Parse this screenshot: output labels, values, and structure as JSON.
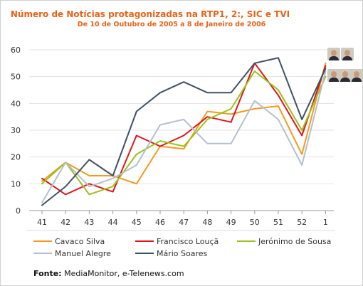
{
  "chart_data": {
    "type": "line",
    "title": "Número de Notícias protagonizadas na RTP1, 2:, SIC e TVI",
    "subtitle": "De 10 de Outubro de 2005 a 8 de Janeiro de 2006",
    "xlabel": "",
    "ylabel": "",
    "categories": [
      "41",
      "42",
      "43",
      "44",
      "45",
      "46",
      "47",
      "48",
      "49",
      "50",
      "51",
      "52",
      "1"
    ],
    "ylim": [
      0,
      60
    ],
    "yticks": [
      0,
      10,
      20,
      30,
      40,
      50,
      60
    ],
    "grid": "horizontal",
    "legend_position": "bottom",
    "series": [
      {
        "name": "Cavaco Silva",
        "color": "#f39a1e",
        "values": [
          11,
          18,
          13,
          13,
          10,
          24,
          23,
          37,
          36,
          38,
          39,
          21,
          55
        ]
      },
      {
        "name": "Francisco Louçã",
        "color": "#e0151b",
        "values": [
          12,
          6,
          10,
          7,
          28,
          24,
          28,
          35,
          33,
          55,
          43,
          28,
          54
        ]
      },
      {
        "name": "Jerónimo de Sousa",
        "color": "#9bc21a",
        "values": [
          10,
          18,
          6,
          9,
          21,
          26,
          24,
          34,
          38,
          52,
          45,
          30,
          50
        ]
      },
      {
        "name": "Manuel Alegre",
        "color": "#b3c0cc",
        "values": [
          3,
          18,
          9,
          12,
          17,
          32,
          34,
          25,
          25,
          41,
          34,
          17,
          52
        ]
      },
      {
        "name": "Mário Soares",
        "color": "#3d5166",
        "values": [
          2,
          9,
          19,
          13,
          37,
          44,
          48,
          44,
          44,
          55,
          57,
          34,
          53
        ]
      }
    ]
  },
  "source": {
    "label": "Fonte:",
    "text": "MediaMonitor, e-Telenews.com"
  },
  "photos": [
    {
      "name": "candidate-photo-1"
    },
    {
      "name": "candidate-photo-2"
    },
    {
      "name": "candidate-photo-3"
    },
    {
      "name": "candidate-photo-4"
    },
    {
      "name": "candidate-photo-5"
    }
  ]
}
